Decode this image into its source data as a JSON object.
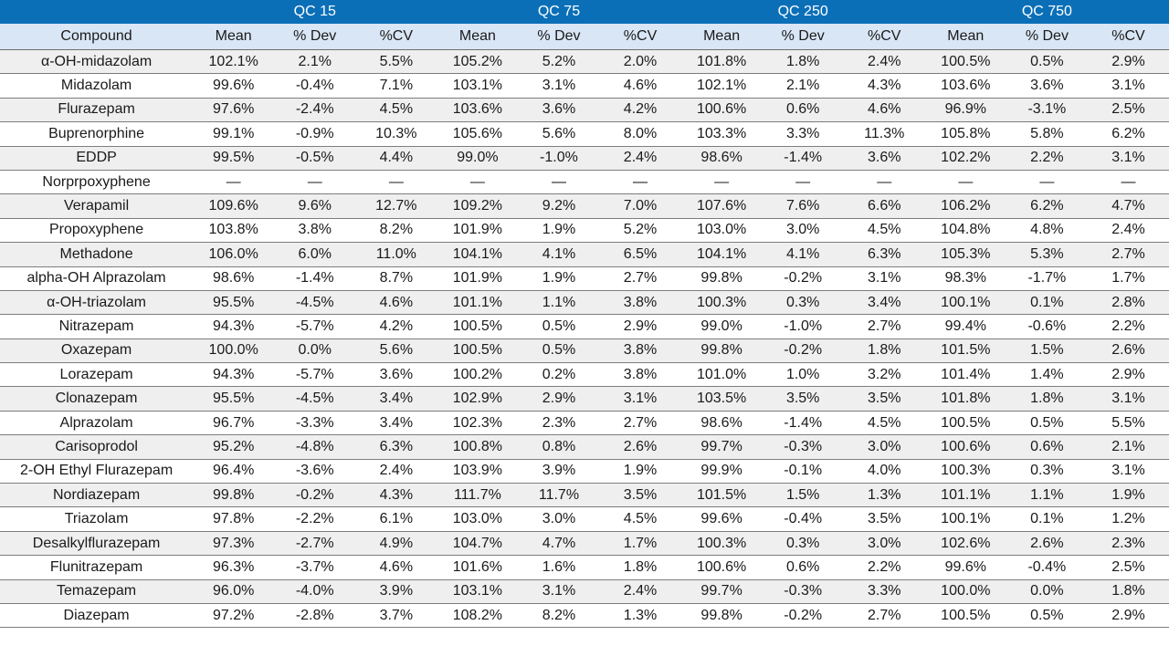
{
  "groups": [
    "QC 15",
    "QC 75",
    "QC 250",
    "QC 750"
  ],
  "subheaders": [
    "Compound",
    "Mean",
    "% Dev",
    "%CV",
    "Mean",
    "% Dev",
    "%CV",
    "Mean",
    "% Dev",
    "%CV",
    "Mean",
    "% Dev",
    "%CV"
  ],
  "rows": [
    [
      "α-OH-midazolam",
      "102.1%",
      "2.1%",
      "5.5%",
      "105.2%",
      "5.2%",
      "2.0%",
      "101.8%",
      "1.8%",
      "2.4%",
      "100.5%",
      "0.5%",
      "2.9%"
    ],
    [
      "Midazolam",
      "99.6%",
      "-0.4%",
      "7.1%",
      "103.1%",
      "3.1%",
      "4.6%",
      "102.1%",
      "2.1%",
      "4.3%",
      "103.6%",
      "3.6%",
      "3.1%"
    ],
    [
      "Flurazepam",
      "97.6%",
      "-2.4%",
      "4.5%",
      "103.6%",
      "3.6%",
      "4.2%",
      "100.6%",
      "0.6%",
      "4.6%",
      "96.9%",
      "-3.1%",
      "2.5%"
    ],
    [
      "Buprenorphine",
      "99.1%",
      "-0.9%",
      "10.3%",
      "105.6%",
      "5.6%",
      "8.0%",
      "103.3%",
      "3.3%",
      "11.3%",
      "105.8%",
      "5.8%",
      "6.2%"
    ],
    [
      "EDDP",
      "99.5%",
      "-0.5%",
      "4.4%",
      "99.0%",
      "-1.0%",
      "2.4%",
      "98.6%",
      "-1.4%",
      "3.6%",
      "102.2%",
      "2.2%",
      "3.1%"
    ],
    [
      "Norprpoxyphene",
      "—",
      "—",
      "—",
      "—",
      "—",
      "—",
      "—",
      "—",
      "—",
      "—",
      "—",
      "—"
    ],
    [
      "Verapamil",
      "109.6%",
      "9.6%",
      "12.7%",
      "109.2%",
      "9.2%",
      "7.0%",
      "107.6%",
      "7.6%",
      "6.6%",
      "106.2%",
      "6.2%",
      "4.7%"
    ],
    [
      "Propoxyphene",
      "103.8%",
      "3.8%",
      "8.2%",
      "101.9%",
      "1.9%",
      "5.2%",
      "103.0%",
      "3.0%",
      "4.5%",
      "104.8%",
      "4.8%",
      "2.4%"
    ],
    [
      "Methadone",
      "106.0%",
      "6.0%",
      "11.0%",
      "104.1%",
      "4.1%",
      "6.5%",
      "104.1%",
      "4.1%",
      "6.3%",
      "105.3%",
      "5.3%",
      "2.7%"
    ],
    [
      "alpha-OH Alprazolam",
      "98.6%",
      "-1.4%",
      "8.7%",
      "101.9%",
      "1.9%",
      "2.7%",
      "99.8%",
      "-0.2%",
      "3.1%",
      "98.3%",
      "-1.7%",
      "1.7%"
    ],
    [
      "α-OH-triazolam",
      "95.5%",
      "-4.5%",
      "4.6%",
      "101.1%",
      "1.1%",
      "3.8%",
      "100.3%",
      "0.3%",
      "3.4%",
      "100.1%",
      "0.1%",
      "2.8%"
    ],
    [
      "Nitrazepam",
      "94.3%",
      "-5.7%",
      "4.2%",
      "100.5%",
      "0.5%",
      "2.9%",
      "99.0%",
      "-1.0%",
      "2.7%",
      "99.4%",
      "-0.6%",
      "2.2%"
    ],
    [
      "Oxazepam",
      "100.0%",
      "0.0%",
      "5.6%",
      "100.5%",
      "0.5%",
      "3.8%",
      "99.8%",
      "-0.2%",
      "1.8%",
      "101.5%",
      "1.5%",
      "2.6%"
    ],
    [
      "Lorazepam",
      "94.3%",
      "-5.7%",
      "3.6%",
      "100.2%",
      "0.2%",
      "3.8%",
      "101.0%",
      "1.0%",
      "3.2%",
      "101.4%",
      "1.4%",
      "2.9%"
    ],
    [
      "Clonazepam",
      "95.5%",
      "-4.5%",
      "3.4%",
      "102.9%",
      "2.9%",
      "3.1%",
      "103.5%",
      "3.5%",
      "3.5%",
      "101.8%",
      "1.8%",
      "3.1%"
    ],
    [
      "Alprazolam",
      "96.7%",
      "-3.3%",
      "3.4%",
      "102.3%",
      "2.3%",
      "2.7%",
      "98.6%",
      "-1.4%",
      "4.5%",
      "100.5%",
      "0.5%",
      "5.5%"
    ],
    [
      "Carisoprodol",
      "95.2%",
      "-4.8%",
      "6.3%",
      "100.8%",
      "0.8%",
      "2.6%",
      "99.7%",
      "-0.3%",
      "3.0%",
      "100.6%",
      "0.6%",
      "2.1%"
    ],
    [
      "2-OH Ethyl Flurazepam",
      "96.4%",
      "-3.6%",
      "2.4%",
      "103.9%",
      "3.9%",
      "1.9%",
      "99.9%",
      "-0.1%",
      "4.0%",
      "100.3%",
      "0.3%",
      "3.1%"
    ],
    [
      "Nordiazepam",
      "99.8%",
      "-0.2%",
      "4.3%",
      "111.7%",
      "11.7%",
      "3.5%",
      "101.5%",
      "1.5%",
      "1.3%",
      "101.1%",
      "1.1%",
      "1.9%"
    ],
    [
      "Triazolam",
      "97.8%",
      "-2.2%",
      "6.1%",
      "103.0%",
      "3.0%",
      "4.5%",
      "99.6%",
      "-0.4%",
      "3.5%",
      "100.1%",
      "0.1%",
      "1.2%"
    ],
    [
      "Desalkylflurazepam",
      "97.3%",
      "-2.7%",
      "4.9%",
      "104.7%",
      "4.7%",
      "1.7%",
      "100.3%",
      "0.3%",
      "3.0%",
      "102.6%",
      "2.6%",
      "2.3%"
    ],
    [
      "Flunitrazepam",
      "96.3%",
      "-3.7%",
      "4.6%",
      "101.6%",
      "1.6%",
      "1.8%",
      "100.6%",
      "0.6%",
      "2.2%",
      "99.6%",
      "-0.4%",
      "2.5%"
    ],
    [
      "Temazepam",
      "96.0%",
      "-4.0%",
      "3.9%",
      "103.1%",
      "3.1%",
      "2.4%",
      "99.7%",
      "-0.3%",
      "3.3%",
      "100.0%",
      "0.0%",
      "1.8%"
    ],
    [
      "Diazepam",
      "97.2%",
      "-2.8%",
      "3.7%",
      "108.2%",
      "8.2%",
      "1.3%",
      "99.8%",
      "-0.2%",
      "2.7%",
      "100.5%",
      "0.5%",
      "2.9%"
    ]
  ],
  "colors": {
    "header_blue": "#0b6fb8",
    "subheader_bg": "#d9e6f5",
    "stripe": "#efefef"
  }
}
